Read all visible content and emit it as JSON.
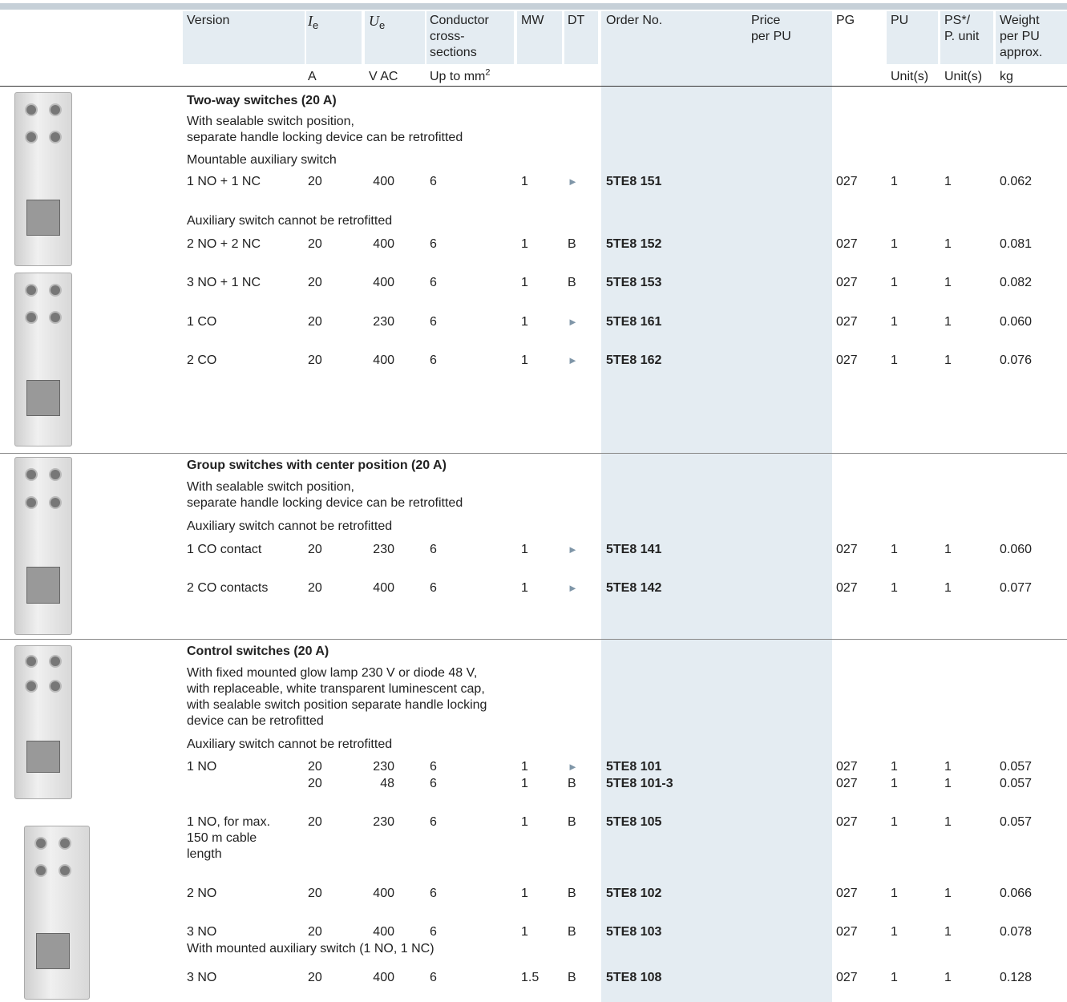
{
  "header": {
    "columns": [
      {
        "label": "Version"
      },
      {
        "label": "I",
        "sub": "e",
        "unit": "A"
      },
      {
        "label": "U",
        "sub": "e",
        "unit": "V AC"
      },
      {
        "label": "Conductor\ncross-\nsections",
        "unit": "Up to mm",
        "unit_sup": "2"
      },
      {
        "label": "MW"
      },
      {
        "label": "DT"
      },
      {
        "label": "Order No."
      },
      {
        "label": "Price\nper PU"
      },
      {
        "label": "PG"
      },
      {
        "label": "PU",
        "unit": "Unit(s)"
      },
      {
        "label": "PS*/\nP. unit",
        "unit": "Unit(s)"
      },
      {
        "label": "Weight\nper PU\napprox.",
        "unit": "kg"
      }
    ]
  },
  "sections": [
    {
      "title": "Two-way switches (20 A)",
      "items": [
        {
          "note": "With sealable switch position,\nseparate handle locking device can be retrofitted"
        },
        {
          "note": "Mountable auxiliary switch"
        },
        {
          "row": {
            "version": "1 NO + 1 NC",
            "ie": "20",
            "ue": "400",
            "cs": "6",
            "mw": "1",
            "dt": "►",
            "order": "5TE8 151",
            "pg": "027",
            "pu": "1",
            "ps": "1",
            "weight": "0.062"
          }
        },
        {
          "note": "Auxiliary switch cannot be retrofitted"
        },
        {
          "row": {
            "version": "2 NO + 2 NC",
            "ie": "20",
            "ue": "400",
            "cs": "6",
            "mw": "1",
            "dt": "B",
            "order": "5TE8 152",
            "pg": "027",
            "pu": "1",
            "ps": "1",
            "weight": "0.081"
          }
        },
        {
          "row": {
            "version": "3 NO + 1 NC",
            "ie": "20",
            "ue": "400",
            "cs": "6",
            "mw": "1",
            "dt": "B",
            "order": "5TE8 153",
            "pg": "027",
            "pu": "1",
            "ps": "1",
            "weight": "0.082"
          }
        },
        {
          "row": {
            "version": "1 CO",
            "ie": "20",
            "ue": "230",
            "cs": "6",
            "mw": "1",
            "dt": "►",
            "order": "5TE8 161",
            "pg": "027",
            "pu": "1",
            "ps": "1",
            "weight": "0.060"
          }
        },
        {
          "row": {
            "version": "2 CO",
            "ie": "20",
            "ue": "400",
            "cs": "6",
            "mw": "1",
            "dt": "►",
            "order": "5TE8 162",
            "pg": "027",
            "pu": "1",
            "ps": "1",
            "weight": "0.076"
          }
        }
      ]
    },
    {
      "title": "Group switches with center position (20 A)",
      "items": [
        {
          "note": "With sealable switch position,\nseparate handle locking device can be retrofitted"
        },
        {
          "note": "Auxiliary switch cannot be retrofitted"
        },
        {
          "row": {
            "version": "1 CO contact",
            "ie": "20",
            "ue": "230",
            "cs": "6",
            "mw": "1",
            "dt": "►",
            "order": "5TE8 141",
            "pg": "027",
            "pu": "1",
            "ps": "1",
            "weight": "0.060"
          }
        },
        {
          "row": {
            "version": "2 CO contacts",
            "ie": "20",
            "ue": "400",
            "cs": "6",
            "mw": "1",
            "dt": "►",
            "order": "5TE8 142",
            "pg": "027",
            "pu": "1",
            "ps": "1",
            "weight": "0.077"
          }
        }
      ]
    },
    {
      "title": "Control switches (20 A)",
      "items": [
        {
          "note": "With fixed mounted glow lamp 230 V or diode 48 V,\nwith replaceable, white transparent luminescent cap,\nwith sealable switch position separate handle locking\ndevice can be retrofitted"
        },
        {
          "note": "Auxiliary switch cannot be retrofitted"
        },
        {
          "row": {
            "version": "1 NO",
            "ie": "20",
            "ue": "230",
            "cs": "6",
            "mw": "1",
            "dt": "►",
            "order": "5TE8 101",
            "pg": "027",
            "pu": "1",
            "ps": "1",
            "weight": "0.057"
          }
        },
        {
          "row": {
            "ie": "20",
            "ue": "48",
            "cs": "6",
            "mw": "1",
            "dt": "B",
            "order": "5TE8 101-3",
            "pg": "027",
            "pu": "1",
            "ps": "1",
            "weight": "0.057"
          }
        },
        {
          "row": {
            "version": "1 NO, for max.\n150 m cable\nlength",
            "ie": "20",
            "ue": "230",
            "cs": "6",
            "mw": "1",
            "dt": "B",
            "order": "5TE8 105",
            "pg": "027",
            "pu": "1",
            "ps": "1",
            "weight": "0.057"
          }
        },
        {
          "row": {
            "version": "2 NO",
            "ie": "20",
            "ue": "400",
            "cs": "6",
            "mw": "1",
            "dt": "B",
            "order": "5TE8 102",
            "pg": "027",
            "pu": "1",
            "ps": "1",
            "weight": "0.066"
          }
        },
        {
          "row": {
            "version": "3 NO",
            "ie": "20",
            "ue": "400",
            "cs": "6",
            "mw": "1",
            "dt": "B",
            "order": "5TE8 103",
            "pg": "027",
            "pu": "1",
            "ps": "1",
            "weight": "0.078"
          }
        },
        {
          "note": "With mounted auxiliary switch (1 NO, 1 NC)"
        },
        {
          "row": {
            "version": "3 NO",
            "ie": "20",
            "ue": "400",
            "cs": "6",
            "mw": "1.5",
            "dt": "B",
            "order": "5TE8 108",
            "pg": "027",
            "pu": "1",
            "ps": "1",
            "weight": "0.128"
          }
        }
      ]
    }
  ]
}
